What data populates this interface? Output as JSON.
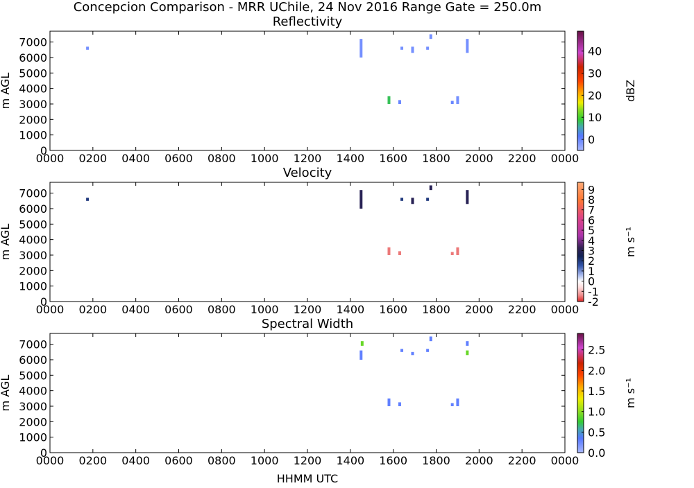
{
  "figure": {
    "suptitle": "Concepcion Comparison - MRR UChile, 24 Nov 2016 Range Gate = 250.0m",
    "xlabel": "HHMM UTC"
  },
  "chart_data": [
    {
      "type": "heatmap",
      "title": "Reflectivity",
      "xlabel": "",
      "ylabel": "m AGL",
      "x_ticks": [
        "0000",
        "0200",
        "0400",
        "0600",
        "0800",
        "1000",
        "1200",
        "1400",
        "1600",
        "1800",
        "2000",
        "2200",
        "0000"
      ],
      "xlim_hours": [
        0,
        24
      ],
      "y_ticks": [
        0,
        1000,
        2000,
        3000,
        4000,
        5000,
        6000,
        7000
      ],
      "ylim": [
        0,
        7700
      ],
      "colorbar": {
        "label": "dBZ",
        "range": [
          -5,
          49
        ],
        "ticks": [
          0,
          10,
          20,
          30,
          40
        ]
      },
      "echoes": [
        {
          "t": 1.75,
          "z0": 6500,
          "z1": 6700,
          "value": -1
        },
        {
          "t": 14.5,
          "z0": 6000,
          "z1": 7200,
          "value": -1
        },
        {
          "t": 15.8,
          "z0": 3000,
          "z1": 3500,
          "value": 8
        },
        {
          "t": 16.3,
          "z0": 3000,
          "z1": 3250,
          "value": 0
        },
        {
          "t": 16.4,
          "z0": 6500,
          "z1": 6700,
          "value": -1
        },
        {
          "t": 16.9,
          "z0": 6300,
          "z1": 6700,
          "value": -1
        },
        {
          "t": 17.6,
          "z0": 6500,
          "z1": 6700,
          "value": -1
        },
        {
          "t": 17.75,
          "z0": 7200,
          "z1": 7500,
          "value": -1
        },
        {
          "t": 18.75,
          "z0": 3000,
          "z1": 3200,
          "value": 0
        },
        {
          "t": 19.0,
          "z0": 3000,
          "z1": 3500,
          "value": -1
        },
        {
          "t": 19.45,
          "z0": 6300,
          "z1": 7200,
          "value": -1
        }
      ]
    },
    {
      "type": "heatmap",
      "title": "Velocity",
      "xlabel": "",
      "ylabel": "m AGL",
      "x_ticks": [
        "0000",
        "0200",
        "0400",
        "0600",
        "0800",
        "1000",
        "1200",
        "1400",
        "1600",
        "1800",
        "2000",
        "2200",
        "0000"
      ],
      "xlim_hours": [
        0,
        24
      ],
      "y_ticks": [
        0,
        1000,
        2000,
        3000,
        4000,
        5000,
        6000,
        7000
      ],
      "ylim": [
        0,
        7700
      ],
      "colorbar": {
        "label": "m s⁻¹",
        "range": [
          -2,
          9.7
        ],
        "ticks": [
          -2,
          -1,
          0,
          1,
          2,
          3,
          4,
          5,
          6,
          7,
          8,
          9
        ]
      },
      "echoes": [
        {
          "t": 1.75,
          "z0": 6500,
          "z1": 6700,
          "value": 2
        },
        {
          "t": 14.5,
          "z0": 6000,
          "z1": 7200,
          "value": 3
        },
        {
          "t": 15.8,
          "z0": 3000,
          "z1": 3500,
          "value": -1.5
        },
        {
          "t": 16.3,
          "z0": 3000,
          "z1": 3250,
          "value": -1.5
        },
        {
          "t": 16.4,
          "z0": 6500,
          "z1": 6700,
          "value": 2
        },
        {
          "t": 16.9,
          "z0": 6300,
          "z1": 6700,
          "value": 3
        },
        {
          "t": 17.6,
          "z0": 6500,
          "z1": 6700,
          "value": 2
        },
        {
          "t": 17.75,
          "z0": 7200,
          "z1": 7500,
          "value": 3
        },
        {
          "t": 18.75,
          "z0": 3000,
          "z1": 3200,
          "value": -1.5
        },
        {
          "t": 19.0,
          "z0": 3000,
          "z1": 3500,
          "value": -1.5
        },
        {
          "t": 19.45,
          "z0": 6300,
          "z1": 7200,
          "value": 3
        }
      ]
    },
    {
      "type": "heatmap",
      "title": "Spectral Width",
      "xlabel": "HHMM UTC",
      "ylabel": "m AGL",
      "x_ticks": [
        "0000",
        "0200",
        "0400",
        "0600",
        "0800",
        "1000",
        "1200",
        "1400",
        "1600",
        "1800",
        "2000",
        "2200",
        "0000"
      ],
      "xlim_hours": [
        0,
        24
      ],
      "y_ticks": [
        0,
        1000,
        2000,
        3000,
        4000,
        5000,
        6000,
        7000
      ],
      "ylim": [
        0,
        7700
      ],
      "colorbar": {
        "label": "m s⁻¹",
        "range": [
          0,
          2.9
        ],
        "ticks": [
          "0.0",
          "0.5",
          "1.0",
          "1.5",
          "2.0",
          "2.5"
        ]
      },
      "echoes": [
        {
          "t": 14.5,
          "z0": 6000,
          "z1": 6600,
          "value": 0.3
        },
        {
          "t": 14.55,
          "z0": 6900,
          "z1": 7200,
          "value": 0.9
        },
        {
          "t": 15.8,
          "z0": 3000,
          "z1": 3500,
          "value": 0.3
        },
        {
          "t": 16.3,
          "z0": 3000,
          "z1": 3250,
          "value": 0.3
        },
        {
          "t": 16.4,
          "z0": 6500,
          "z1": 6700,
          "value": 0.3
        },
        {
          "t": 16.9,
          "z0": 6300,
          "z1": 6500,
          "value": 0.3
        },
        {
          "t": 17.6,
          "z0": 6500,
          "z1": 6700,
          "value": 0.3
        },
        {
          "t": 17.75,
          "z0": 7200,
          "z1": 7500,
          "value": 0.3
        },
        {
          "t": 18.75,
          "z0": 3000,
          "z1": 3200,
          "value": 0.3
        },
        {
          "t": 19.0,
          "z0": 3000,
          "z1": 3500,
          "value": 0.3
        },
        {
          "t": 19.45,
          "z0": 6300,
          "z1": 6600,
          "value": 0.9
        },
        {
          "t": 19.45,
          "z0": 6900,
          "z1": 7200,
          "value": 0.3
        }
      ]
    }
  ]
}
